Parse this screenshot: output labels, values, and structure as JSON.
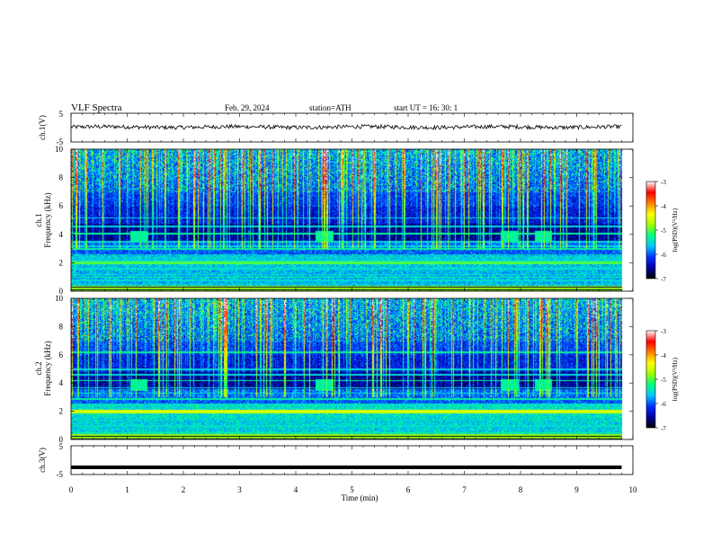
{
  "header": {
    "title": "VLF  Spectra",
    "date": "Feb. 29, 2024",
    "station": "station=ATH",
    "start": "start  UT  =   16: 30: 1"
  },
  "chart_data": [
    {
      "type": "line",
      "name": "ch1-waveform",
      "ylabel": "ch.1(V)",
      "ylim": [
        -5,
        5
      ],
      "yticks": [
        "5",
        "-5"
      ],
      "x_range_min": [
        0,
        9.8
      ],
      "level": 0.2,
      "noise": "low"
    },
    {
      "type": "heatmap",
      "name": "ch1-spectrogram",
      "ylabel": "ch.1\nFrequency (kHz)",
      "ylim": [
        0,
        10
      ],
      "yticks": [
        "0",
        "2",
        "4",
        "6",
        "8",
        "10"
      ],
      "hum_lines_khz": [
        0.3,
        0.5,
        0.8,
        1.0,
        1.2,
        1.6,
        2.0,
        2.2,
        2.4,
        3.0,
        3.2,
        3.5,
        4.1,
        4.6,
        5.2
      ],
      "bursts_min": [
        1.2,
        4.5,
        7.8,
        8.4
      ],
      "colorbar": {
        "label": "log(PSD)(V²/Hz)",
        "range": [
          -7,
          -3
        ],
        "ticks": [
          "-3",
          "-4",
          "-5",
          "-6",
          "-7"
        ]
      }
    },
    {
      "type": "heatmap",
      "name": "ch2-spectrogram",
      "ylabel": "ch.2\nFrequency (kHz)",
      "ylim": [
        0,
        10
      ],
      "yticks": [
        "0",
        "2",
        "4",
        "6",
        "8",
        "10"
      ],
      "hum_lines_khz": [
        0.5,
        1.0,
        1.4,
        1.9,
        2.1,
        2.5,
        2.9,
        3.3,
        3.7,
        4.2,
        4.6,
        5.0,
        6.2
      ],
      "bursts_min": [
        1.2,
        4.5,
        7.8,
        8.4
      ],
      "colorbar": {
        "label": "log(PSD)(V²/Hz)",
        "range": [
          -7,
          -3
        ],
        "ticks": [
          "-3",
          "-4",
          "-5",
          "-6",
          "-7"
        ]
      }
    },
    {
      "type": "line",
      "name": "ch3-waveform",
      "ylabel": "ch.3(V)",
      "ylim": [
        -5,
        5
      ],
      "yticks": [
        "5",
        "-5"
      ],
      "level": -2.5,
      "noise": "flat"
    }
  ],
  "x_axis": {
    "xlabel": "Time  (min)",
    "xlim": [
      0,
      10
    ],
    "ticks": [
      "0",
      "1",
      "2",
      "3",
      "4",
      "5",
      "6",
      "7",
      "8",
      "9",
      "10"
    ],
    "data_end_min": 9.8
  },
  "colors": {
    "colormap": [
      "#000000",
      "#0000a0",
      "#0030ff",
      "#00c8ff",
      "#00ff80",
      "#a0ff00",
      "#ffff00",
      "#ff8000",
      "#ff0000",
      "#ffffff"
    ]
  }
}
